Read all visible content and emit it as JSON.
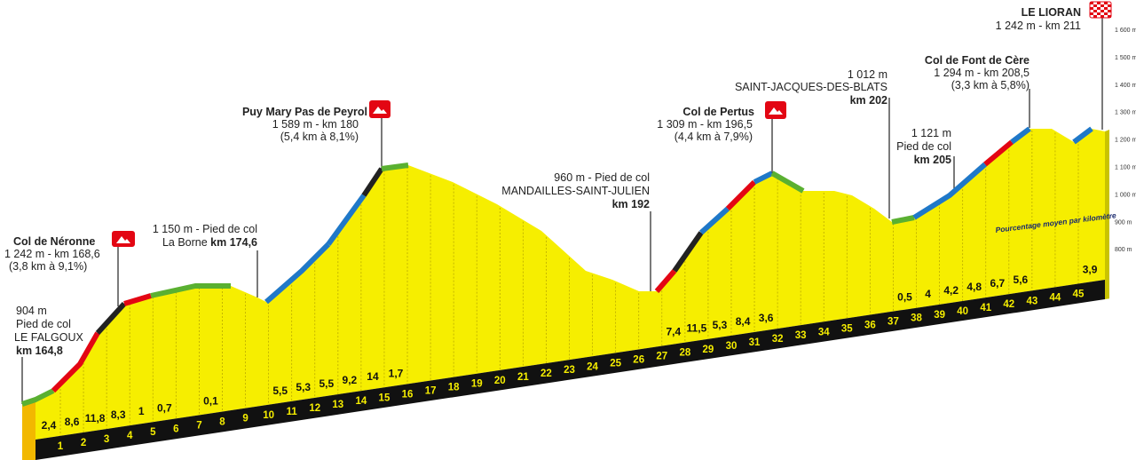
{
  "climbs": {
    "neronne": {
      "name": "Col de Néronne",
      "alt": "1 242 m - km 168,6",
      "detail": "(3,8 km à 9,1%)"
    },
    "falgoux": {
      "alt": "904 m",
      "kind": "Pied de col",
      "place": "LE FALGOUX",
      "km": "km 164,8"
    },
    "laborne": {
      "alt": "1 150 m - Pied de col",
      "place": "La Borne",
      "km": "km 174,6"
    },
    "puymary": {
      "name": "Puy Mary Pas de Peyrol",
      "alt": "1 589 m - km 180",
      "detail": "(5,4 km à 8,1%)"
    },
    "mandailles": {
      "alt": "960 m - Pied de col",
      "place": "MANDAILLES-SAINT-JULIEN",
      "km": "km 192"
    },
    "pertus": {
      "name": "Col de Pertus",
      "alt": "1 309 m - km 196,5",
      "detail": "(4,4 km à 7,9%)"
    },
    "stjacques": {
      "alt": "1 012 m",
      "place": "SAINT-JACQUES-DES-BLATS",
      "km": "km 202"
    },
    "pied205": {
      "alt": "1 121 m",
      "kind": "Pied de col",
      "km": "km 205"
    },
    "fontcere": {
      "name": "Col de Font de Cère",
      "alt": "1 294 m - km 208,5",
      "detail": "(3,3 km à 5,8%)"
    },
    "lioran": {
      "name": "LE LIORAN",
      "alt": "1 242 m - km 211"
    }
  },
  "km_markers": [
    1,
    2,
    3,
    4,
    5,
    6,
    7,
    8,
    9,
    10,
    11,
    12,
    13,
    14,
    15,
    16,
    17,
    18,
    19,
    20,
    21,
    22,
    23,
    24,
    25,
    26,
    27,
    28,
    29,
    30,
    31,
    32,
    33,
    34,
    35,
    36,
    37,
    38,
    39,
    40,
    41,
    42,
    43,
    44,
    45
  ],
  "gradients": [
    "2,4",
    "8,6",
    "11,8",
    "8,3",
    "1",
    "0,7",
    null,
    "0,1",
    null,
    null,
    "5,5",
    "5,3",
    "5,5",
    "9,2",
    "14",
    "1,7",
    null,
    null,
    null,
    null,
    null,
    null,
    null,
    null,
    null,
    null,
    null,
    "7,4",
    "11,5",
    "5,3",
    "8,4",
    "3,6",
    null,
    null,
    null,
    null,
    null,
    "0,5",
    "4",
    "4,2",
    "4,8",
    "6,7",
    "5,6",
    null,
    null,
    "3,9"
  ],
  "altitude_axis": [
    "1 600 m",
    "1 500 m",
    "1 400 m",
    "1 300 m",
    "1 200 m",
    "1 100 m",
    "1 000 m",
    "900 m",
    "800 m"
  ],
  "note": "Pourcentage moyen par kilomètre"
}
